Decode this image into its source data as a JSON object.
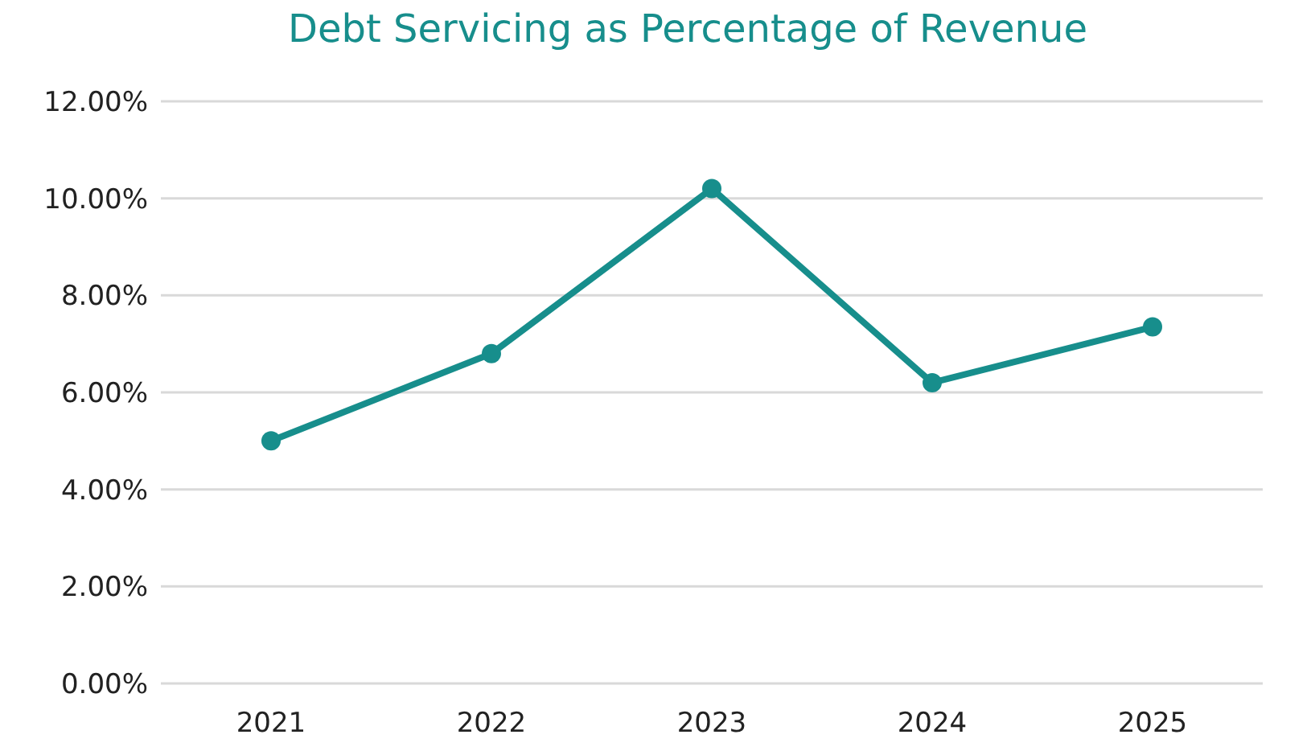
{
  "chart_data": {
    "type": "line",
    "title": "Debt Servicing as Percentage of Revenue",
    "categories": [
      "2021",
      "2022",
      "2023",
      "2024",
      "2025"
    ],
    "series": [
      {
        "color": "#178e8c",
        "values": [
          5.0,
          6.8,
          10.2,
          6.2,
          7.35
        ]
      }
    ],
    "ylim": [
      0,
      12
    ],
    "yticks": [
      {
        "value": 0,
        "label": "0.00%"
      },
      {
        "value": 2,
        "label": "2.00%"
      },
      {
        "value": 4,
        "label": "4.00%"
      },
      {
        "value": 6,
        "label": "6.00%"
      },
      {
        "value": 8,
        "label": "8.00%"
      },
      {
        "value": 10,
        "label": "10.00%"
      },
      {
        "value": 12,
        "label": "12.00%"
      }
    ],
    "grid": "y",
    "marker": "circle"
  }
}
